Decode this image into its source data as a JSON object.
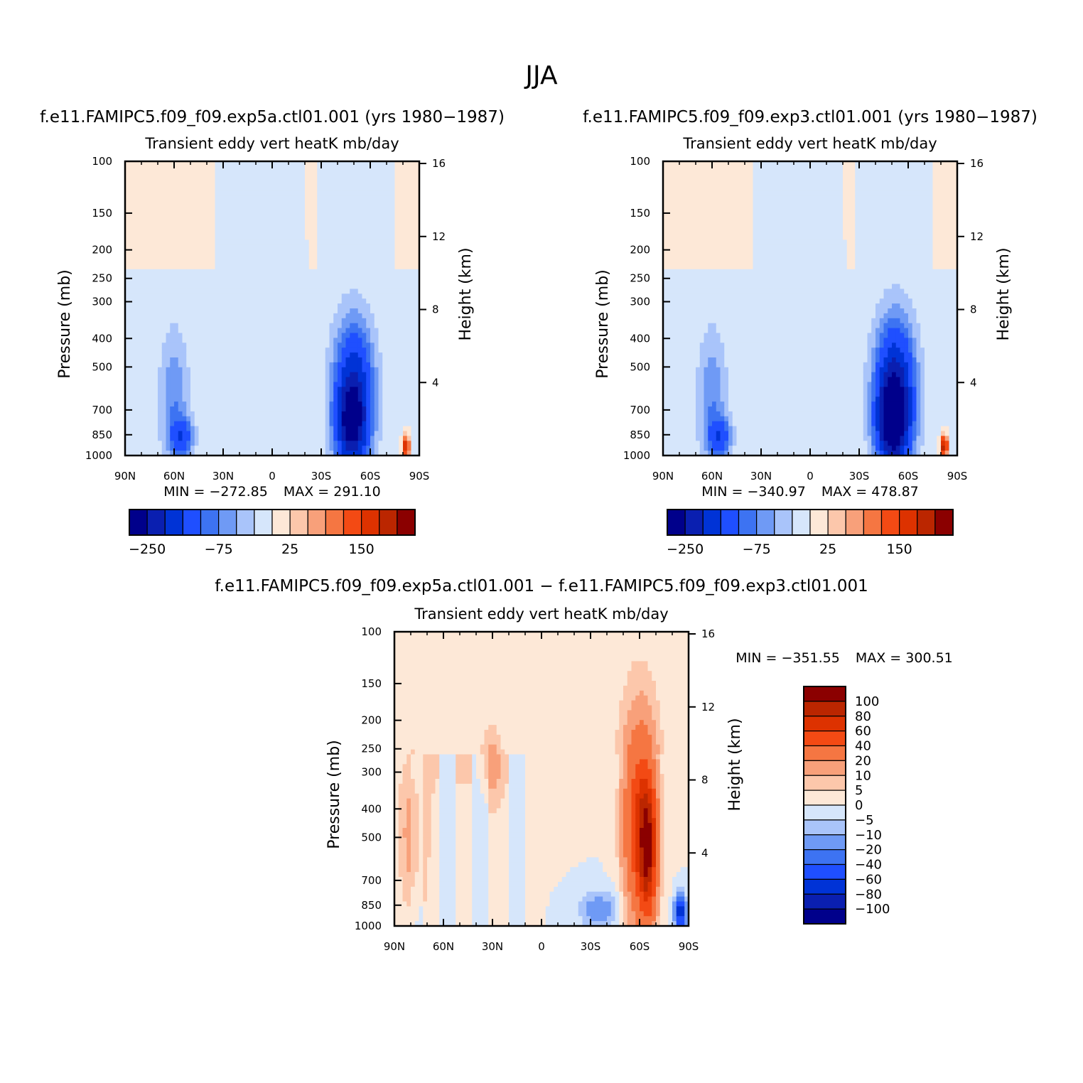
{
  "figure_title": "JJA",
  "palette_abs": [
    "#00008b",
    "#0a1fb0",
    "#0033d6",
    "#1f4fff",
    "#3d73f2",
    "#6f9af5",
    "#a9c4fa",
    "#d6e6fb",
    "#fde8d7",
    "#fcc7ab",
    "#f8a07a",
    "#f57642",
    "#f34a14",
    "#dd3200",
    "#bb2600",
    "#8b0000"
  ],
  "palette_diff": [
    "#00008b",
    "#0a1fb0",
    "#0033d6",
    "#1f4fff",
    "#3d73f2",
    "#6f9af5",
    "#a9c4fa",
    "#d6e6fb",
    "#fde8d7",
    "#fcc7ab",
    "#f8a07a",
    "#f57642",
    "#f34a14",
    "#dd3200",
    "#bb2600",
    "#8b0000"
  ],
  "chart_data": [
    {
      "id": "panel_a",
      "type": "heatmap",
      "case_title": "f.e11.FAMIPC5.f09_f09.exp5a.ctl01.001 (yrs 1980-1987)",
      "title": "Transient eddy vert heatK mb/day",
      "ylabel": "Pressure (mb)",
      "ylabel_right": "Height (km)",
      "x_ticks": [
        "90N",
        "60N",
        "30N",
        "0",
        "30S",
        "60S",
        "90S"
      ],
      "y_ticks": [
        "100",
        "150",
        "200",
        "250",
        "300",
        "400",
        "500",
        "700",
        "850",
        "1000"
      ],
      "y_values": [
        100,
        150,
        200,
        250,
        300,
        400,
        500,
        700,
        850,
        1000
      ],
      "height_ticks": [
        "16",
        "12",
        "8",
        "4"
      ],
      "height_values": [
        16,
        12,
        8,
        4
      ],
      "min_label": "MIN = -272.85",
      "max_label": "MAX = 291.10",
      "colorbar_labels": [
        "-250",
        "-75",
        "25",
        "150"
      ],
      "features": [
        {
          "lat": 60,
          "p": 650,
          "v": -70,
          "slat": 9,
          "sp": 0.55
        },
        {
          "lat": 55,
          "p": 870,
          "v": -110,
          "slat": 7,
          "sp": 0.15
        },
        {
          "lat": -50,
          "p": 620,
          "v": -200,
          "slat": 12,
          "sp": 0.55
        },
        {
          "lat": -48,
          "p": 800,
          "v": -150,
          "slat": 9,
          "sp": 0.3
        },
        {
          "lat": -82,
          "p": 930,
          "v": 200,
          "slat": 2,
          "sp": 0.08
        },
        {
          "lat": 0,
          "p": 300,
          "v": -12,
          "slat": 25,
          "sp": 1.2
        }
      ],
      "background": 4
    },
    {
      "id": "panel_b",
      "type": "heatmap",
      "case_title": "f.e11.FAMIPC5.f09_f09.exp3.ctl01.001 (yrs 1980-1987)",
      "title": "Transient eddy vert heatK mb/day",
      "ylabel": "Pressure (mb)",
      "ylabel_right": "Height (km)",
      "x_ticks": [
        "90N",
        "60N",
        "30N",
        "0",
        "30S",
        "60S",
        "90S"
      ],
      "y_ticks": [
        "100",
        "150",
        "200",
        "250",
        "300",
        "400",
        "500",
        "700",
        "850",
        "1000"
      ],
      "y_values": [
        100,
        150,
        200,
        250,
        300,
        400,
        500,
        700,
        850,
        1000
      ],
      "height_ticks": [
        "16",
        "12",
        "8",
        "4"
      ],
      "height_values": [
        16,
        12,
        8,
        4
      ],
      "min_label": "MIN = -340.97",
      "max_label": "MAX = 478.87",
      "colorbar_labels": [
        "-250",
        "-75",
        "25",
        "150"
      ],
      "features": [
        {
          "lat": 60,
          "p": 650,
          "v": -70,
          "slat": 9,
          "sp": 0.55
        },
        {
          "lat": 55,
          "p": 870,
          "v": -110,
          "slat": 7,
          "sp": 0.15
        },
        {
          "lat": -52,
          "p": 620,
          "v": -240,
          "slat": 12,
          "sp": 0.55
        },
        {
          "lat": -50,
          "p": 780,
          "v": -180,
          "slat": 9,
          "sp": 0.3
        },
        {
          "lat": -82,
          "p": 930,
          "v": 250,
          "slat": 2,
          "sp": 0.08
        },
        {
          "lat": 0,
          "p": 300,
          "v": -12,
          "slat": 25,
          "sp": 1.2
        }
      ],
      "background": 4
    },
    {
      "id": "panel_diff",
      "type": "heatmap",
      "case_title": "f.e11.FAMIPC5.f09_f09.exp5a.ctl01.001 - f.e11.FAMIPC5.f09_f09.exp3.ctl01.001",
      "title": "Transient eddy vert heatK mb/day",
      "ylabel": "Pressure (mb)",
      "ylabel_right": "Height (km)",
      "x_ticks": [
        "90N",
        "60N",
        "30N",
        "0",
        "30S",
        "60S",
        "90S"
      ],
      "y_ticks": [
        "100",
        "150",
        "200",
        "250",
        "300",
        "400",
        "500",
        "700",
        "850",
        "1000"
      ],
      "y_values": [
        100,
        150,
        200,
        250,
        300,
        400,
        500,
        700,
        850,
        1000
      ],
      "height_ticks": [
        "16",
        "12",
        "8",
        "4"
      ],
      "height_values": [
        16,
        12,
        8,
        4
      ],
      "min_label": "MIN = -351.55",
      "max_label": "MAX = 300.51",
      "colorbar_labels": [
        "100",
        "80",
        "60",
        "40",
        "20",
        "10",
        "5",
        "0",
        "-5",
        "-10",
        "-20",
        "-40",
        "-60",
        "-80",
        "-100"
      ],
      "features": [
        {
          "lat": 80,
          "p": 500,
          "v": 12,
          "slat": 8,
          "sp": 0.6
        },
        {
          "lat": 30,
          "p": 280,
          "v": 11,
          "slat": 6,
          "sp": 0.25
        },
        {
          "lat": -60,
          "p": 450,
          "v": 60,
          "slat": 9,
          "sp": 0.7
        },
        {
          "lat": -65,
          "p": 550,
          "v": 80,
          "slat": 5,
          "sp": 0.5
        },
        {
          "lat": -35,
          "p": 880,
          "v": -15,
          "slat": 12,
          "sp": 0.15
        },
        {
          "lat": -85,
          "p": 900,
          "v": -80,
          "slat": 3,
          "sp": 0.12
        },
        {
          "lat": 50,
          "p": 200,
          "v": 3,
          "slat": 40,
          "sp": 0.8
        }
      ],
      "background": 2
    }
  ]
}
